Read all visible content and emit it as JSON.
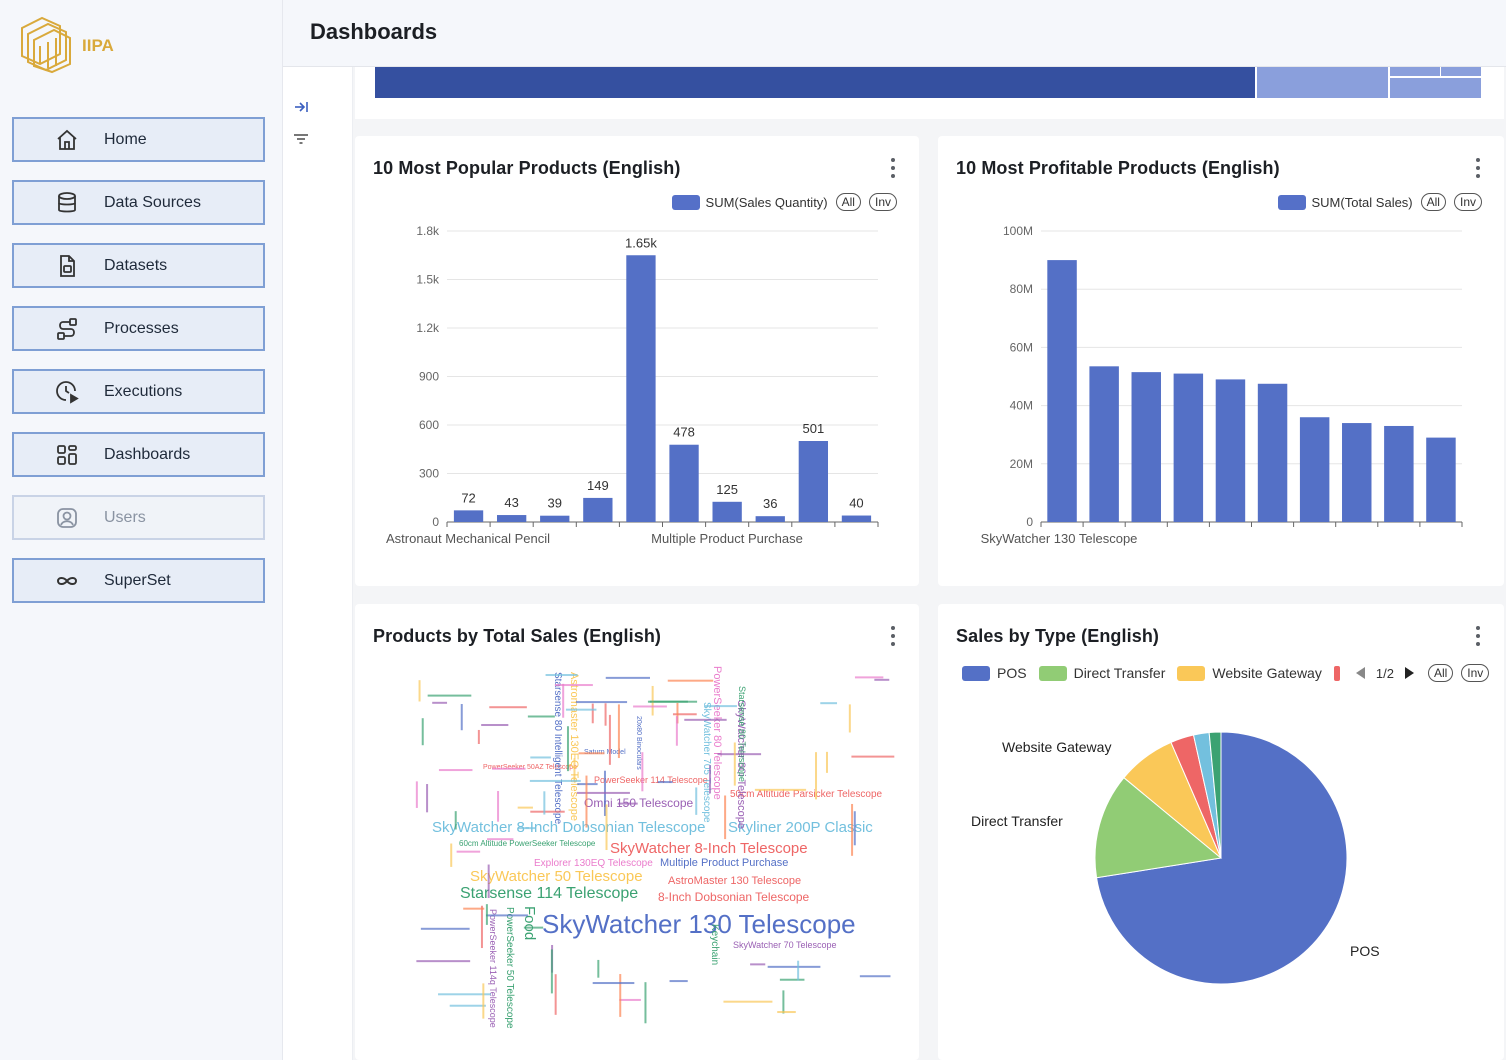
{
  "app": {
    "logo_text": "IIPA",
    "page_title": "Dashboards"
  },
  "sidebar": {
    "items": [
      {
        "label": "Home",
        "icon": "home-icon",
        "enabled": true
      },
      {
        "label": "Data Sources",
        "icon": "database-icon",
        "enabled": true
      },
      {
        "label": "Datasets",
        "icon": "file-icon",
        "enabled": true
      },
      {
        "label": "Processes",
        "icon": "process-icon",
        "enabled": true
      },
      {
        "label": "Executions",
        "icon": "clock-play-icon",
        "enabled": true
      },
      {
        "label": "Dashboards",
        "icon": "dashboard-icon",
        "enabled": true
      },
      {
        "label": "Users",
        "icon": "user-icon",
        "enabled": false
      },
      {
        "label": "SuperSet",
        "icon": "infinity-icon",
        "enabled": true
      }
    ]
  },
  "colors": {
    "primary": "#5470c6",
    "green": "#91cc75",
    "yellow": "#fac858",
    "red": "#ee6666",
    "teal": "#73c0de",
    "darkgreen": "#3ba272",
    "strip_dark": "#3550a0",
    "strip_light": "#8a9fdc"
  },
  "charts": {
    "popular": {
      "title": "10 Most Popular Products (English)",
      "legend": "SUM(Sales Quantity)",
      "all": "All",
      "inv": "Inv"
    },
    "profitable": {
      "title": "10 Most Profitable Products (English)",
      "legend": "SUM(Total Sales)",
      "all": "All",
      "inv": "Inv"
    },
    "wordcloud": {
      "title": "Products by Total Sales (English)"
    },
    "salestype": {
      "title": "Sales by Type (English)",
      "legend": [
        "POS",
        "Direct Transfer",
        "Website Gateway"
      ],
      "page": "1/2",
      "all": "All",
      "inv": "Inv"
    }
  },
  "chart_data": [
    {
      "type": "bar",
      "title": "10 Most Popular Products (English)",
      "series": [
        {
          "name": "SUM(Sales Quantity)",
          "values": [
            72,
            43,
            39,
            149,
            1650,
            478,
            125,
            36,
            501,
            40
          ]
        }
      ],
      "labels": [
        "72",
        "43",
        "39",
        "149",
        "1.65k",
        "478",
        "125",
        "36",
        "501",
        "40"
      ],
      "categories_shown": [
        "Astronaut Mechanical Pencil",
        "Multiple Product Purchase"
      ],
      "yticks": [
        "0",
        "300",
        "600",
        "900",
        "1.2k",
        "1.5k",
        "1.8k"
      ],
      "ylim": [
        0,
        1800
      ],
      "grid": true,
      "legend_position": "top-right"
    },
    {
      "type": "bar",
      "title": "10 Most Profitable Products (English)",
      "series": [
        {
          "name": "SUM(Total Sales)",
          "values": [
            90000000,
            53500000,
            51500000,
            51000000,
            49000000,
            47500000,
            36000000,
            34000000,
            33000000,
            29000000
          ]
        }
      ],
      "categories_shown": [
        "SkyWatcher 130 Telescope"
      ],
      "yticks": [
        "0",
        "20M",
        "40M",
        "60M",
        "80M",
        "100M"
      ],
      "ylim": [
        0,
        100000000
      ],
      "grid": true,
      "legend_position": "top-right"
    },
    {
      "type": "pie",
      "title": "Sales by Type (English)",
      "series": [
        {
          "name": "Sales by Type",
          "values": [
            72.5,
            13.5,
            7.5,
            3,
            2,
            1.5
          ]
        }
      ],
      "categories": [
        "POS",
        "Direct Transfer",
        "Website Gateway",
        "",
        "",
        ""
      ],
      "labels_shown": [
        "POS",
        "Direct Transfer",
        "Website Gateway"
      ],
      "legend_position": "top"
    }
  ],
  "wordcloud_words": [
    {
      "text": "SkyWatcher 130 Telescope",
      "size": 26,
      "color": "#5470c6"
    },
    {
      "text": "SkyWatcher 8-Inch Dobsonian Telescope",
      "size": 15,
      "color": "#73c0de"
    },
    {
      "text": "Skyliner 200P Classic",
      "size": 15,
      "color": "#73c0de"
    },
    {
      "text": "SkyWatcher 8-Inch Telescope",
      "size": 15,
      "color": "#ee6666"
    },
    {
      "text": "SkyWatcher 50 Telescope",
      "size": 15,
      "color": "#fac858"
    },
    {
      "text": "Starsense 114 Telescope",
      "size": 16,
      "color": "#3ba272"
    },
    {
      "text": "Omni 150 Telescope",
      "size": 12,
      "color": "#9a60b4"
    },
    {
      "text": "Multiple Product Purchase",
      "size": 11,
      "color": "#5470c6"
    },
    {
      "text": "AstroMaster 130 Telescope",
      "size": 11,
      "color": "#ee6666"
    },
    {
      "text": "8-Inch Dobsonian Telescope",
      "size": 12,
      "color": "#ee6666"
    },
    {
      "text": "Explorer 130EQ Telescope",
      "size": 10,
      "color": "#ea7ccc"
    },
    {
      "text": "50cm Altitude Parsicker Telescope",
      "size": 10,
      "color": "#ee6666"
    },
    {
      "text": "PowerSeeker 114 Telescope",
      "size": 9,
      "color": "#ee6666"
    },
    {
      "text": "60cm Altitude PowerSeeker Telescope",
      "size": 8,
      "color": "#3ba272"
    },
    {
      "text": "SkyWatcher 70 Telescope",
      "size": 9,
      "color": "#9a60b4"
    },
    {
      "text": "PowerSeeker 50AZ Telescope",
      "size": 7,
      "color": "#ee6666"
    },
    {
      "text": "Saturn Model",
      "size": 7,
      "color": "#5470c6"
    },
    {
      "text": "Food",
      "size": 15,
      "color": "#3ba272"
    },
    {
      "text": "Astromaster 130EQ Telescope",
      "size": 11,
      "color": "#fac858"
    },
    {
      "text": "Starsense 80 Intelligent Telescope",
      "size": 10,
      "color": "#5470c6"
    },
    {
      "text": "PowerSeeker 80 Telescope",
      "size": 11,
      "color": "#ea7ccc"
    },
    {
      "text": "SkyWatcher 705 Telescope",
      "size": 10,
      "color": "#73c0de"
    },
    {
      "text": "SkyWatcher 80i Telescope",
      "size": 11,
      "color": "#9a60b4"
    },
    {
      "text": "Starsense 80 Telescope",
      "size": 9,
      "color": "#3ba272"
    },
    {
      "text": "PowerSeeker 50 Telescope",
      "size": 10,
      "color": "#3ba272"
    },
    {
      "text": "PowerSeeker 114q Telescope",
      "size": 9,
      "color": "#9a60b4"
    },
    {
      "text": "Keychain",
      "size": 10,
      "color": "#3ba272"
    },
    {
      "text": "20x80 Binoculars",
      "size": 7,
      "color": "#5470c6"
    }
  ]
}
